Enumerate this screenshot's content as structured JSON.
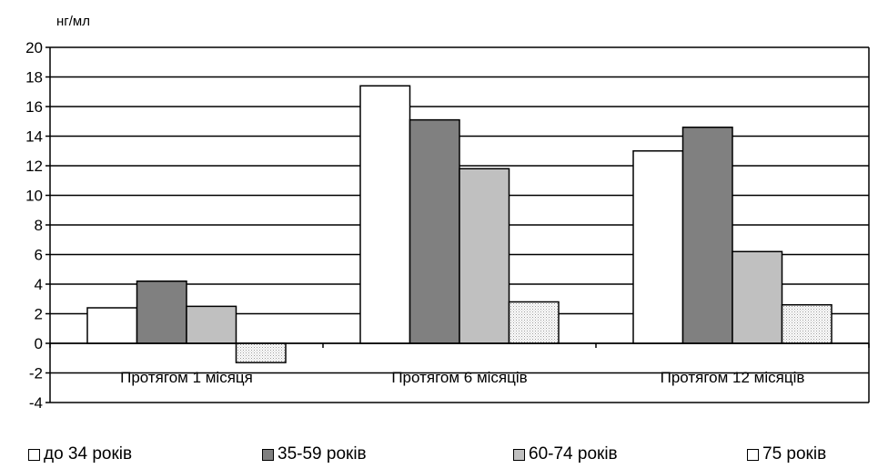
{
  "chart_data": {
    "type": "bar",
    "unit_label": "нг/мл",
    "categories": [
      "Протягом 1 місяця",
      "Протягом 6 місяців",
      "Протягом 12 місяців"
    ],
    "series": [
      {
        "name": "до 34 років",
        "values": [
          2.4,
          17.4,
          13.0
        ],
        "color": "#ffffff"
      },
      {
        "name": "35-59 років",
        "values": [
          4.2,
          15.1,
          14.6
        ],
        "color": "#808080"
      },
      {
        "name": "60-74 років",
        "values": [
          2.5,
          11.8,
          6.2
        ],
        "color": "#c0c0c0"
      },
      {
        "name": "75 років",
        "values": [
          -1.3,
          2.8,
          2.6
        ],
        "color": "#dcdcdc",
        "pattern": "dotted"
      }
    ],
    "ylim": [
      -4,
      20
    ],
    "yticks": [
      "20",
      "18",
      "16",
      "14",
      "12",
      "10",
      "8",
      "6",
      "4",
      "2",
      "0",
      "-2",
      "-4"
    ],
    "grid": true,
    "legend_position": "bottom"
  }
}
